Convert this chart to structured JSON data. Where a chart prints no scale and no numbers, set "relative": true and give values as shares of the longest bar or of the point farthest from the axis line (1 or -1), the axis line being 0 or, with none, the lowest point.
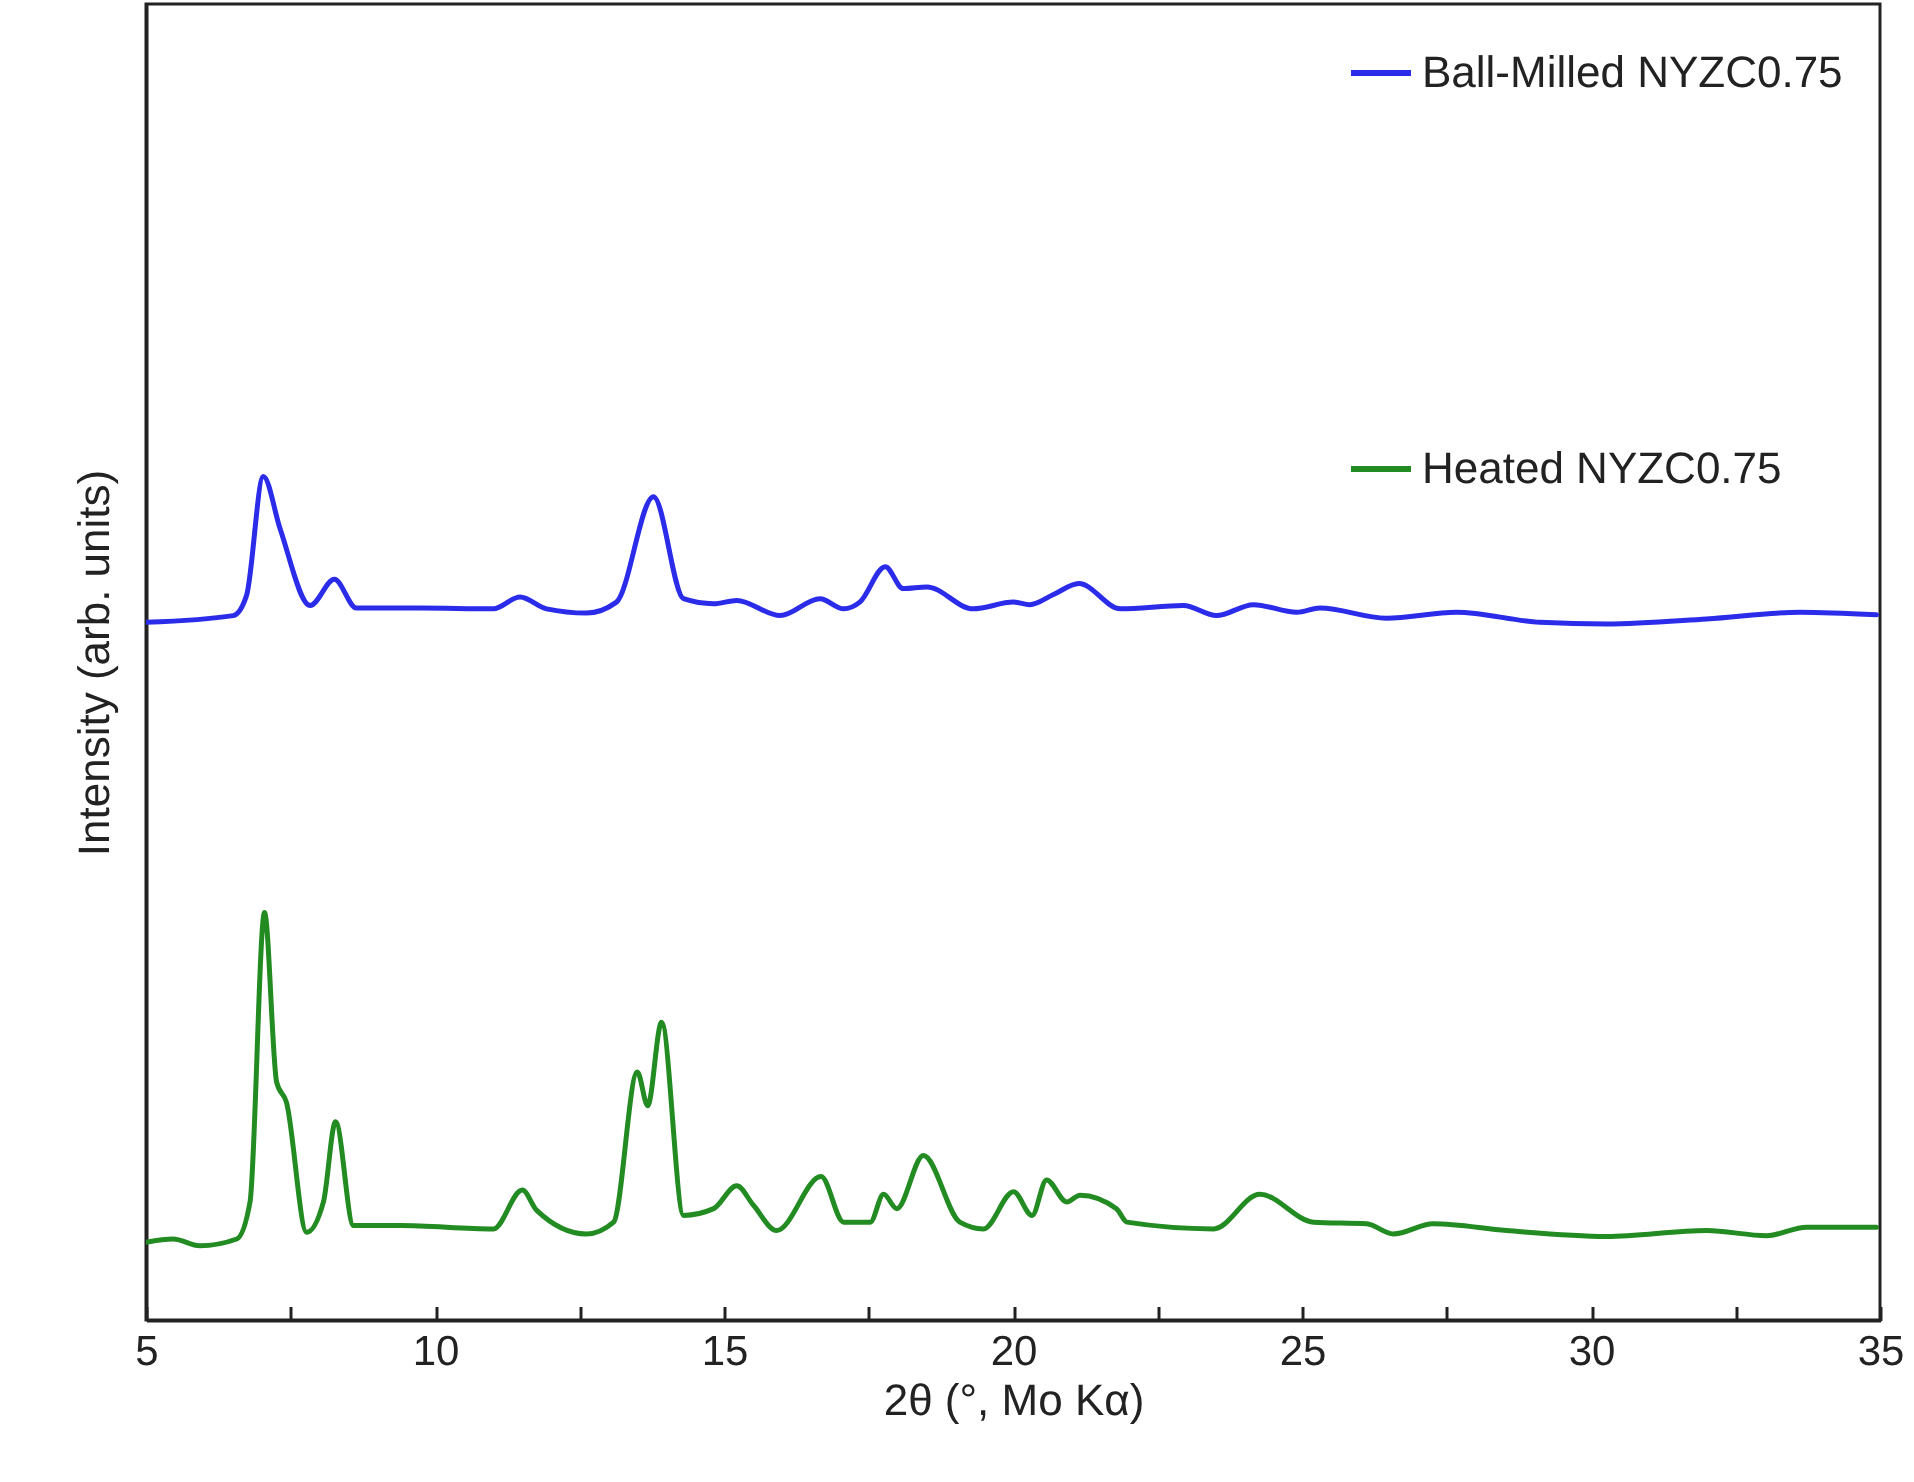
{
  "chart_data": {
    "type": "line",
    "xlabel": "2θ (°, Mo Kα)",
    "ylabel": "Intensity (arb. units)",
    "relative": true,
    "xlim": [
      5,
      35
    ],
    "xticks": [
      5,
      {
        "value": 7.5,
        "label": null
      },
      10,
      {
        "value": 12.5,
        "label": null
      },
      15,
      {
        "value": 17.5,
        "label": null
      },
      20,
      {
        "value": 22.5,
        "label": null
      },
      25,
      {
        "value": 27.5,
        "label": null
      },
      30,
      {
        "value": 32.5,
        "label": null
      },
      35
    ],
    "legend": "top right",
    "series": [
      {
        "name": "Ball-Milled NYZC0.75",
        "color": "#2b2bea",
        "x": [
          5.0,
          6.51,
          6.74,
          7.03,
          7.32,
          7.84,
          8.26,
          8.64,
          9.74,
          11.01,
          11.47,
          11.93,
          12.62,
          13.14,
          13.78,
          14.3,
          14.82,
          15.22,
          15.97,
          16.66,
          17.07,
          17.35,
          17.79,
          18.1,
          18.51,
          19.31,
          20.01,
          20.29,
          20.7,
          21.14,
          21.86,
          22.95,
          23.52,
          24.16,
          24.91,
          25.31,
          26.46,
          27.67,
          29.12,
          30.27,
          32.0,
          33.62,
          34.94
        ],
        "values": [
          0.827,
          0.835,
          0.859,
          1.0,
          0.938,
          0.847,
          0.878,
          0.844,
          0.844,
          0.843,
          0.857,
          0.843,
          0.838,
          0.851,
          0.976,
          0.855,
          0.849,
          0.853,
          0.835,
          0.855,
          0.843,
          0.851,
          0.893,
          0.867,
          0.869,
          0.843,
          0.851,
          0.848,
          0.86,
          0.873,
          0.843,
          0.847,
          0.835,
          0.848,
          0.839,
          0.844,
          0.832,
          0.839,
          0.827,
          0.825,
          0.831,
          0.839,
          0.836
        ]
      },
      {
        "name": "Heated NYZC0.75",
        "color": "#228b22",
        "x": [
          5.0,
          5.47,
          5.93,
          6.57,
          6.8,
          7.05,
          7.26,
          7.43,
          7.78,
          8.07,
          8.28,
          8.59,
          9.39,
          11.01,
          11.51,
          11.76,
          12.62,
          13.09,
          13.5,
          13.68,
          13.92,
          14.3,
          14.82,
          15.22,
          15.51,
          15.91,
          16.68,
          17.07,
          17.53,
          17.76,
          17.99,
          18.45,
          19.08,
          19.49,
          20.01,
          20.33,
          20.58,
          20.93,
          21.16,
          21.79,
          21.97,
          23.47,
          24.27,
          25.2,
          26.12,
          26.58,
          27.27,
          28.54,
          30.27,
          32.0,
          33.04,
          33.73,
          34.94
        ],
        "values": [
          0.092,
          0.096,
          0.088,
          0.096,
          0.14,
          0.483,
          0.282,
          0.258,
          0.104,
          0.14,
          0.235,
          0.112,
          0.112,
          0.108,
          0.154,
          0.13,
          0.102,
          0.116,
          0.294,
          0.254,
          0.353,
          0.124,
          0.132,
          0.159,
          0.136,
          0.106,
          0.17,
          0.116,
          0.116,
          0.149,
          0.132,
          0.195,
          0.116,
          0.108,
          0.152,
          0.124,
          0.166,
          0.14,
          0.148,
          0.132,
          0.116,
          0.108,
          0.149,
          0.116,
          0.114,
          0.102,
          0.114,
          0.106,
          0.099,
          0.106,
          0.1,
          0.11,
          0.11
        ]
      }
    ]
  }
}
